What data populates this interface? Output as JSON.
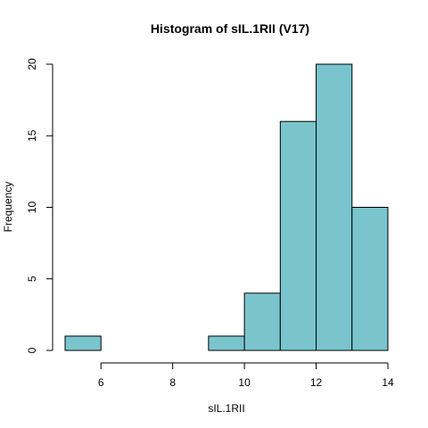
{
  "chart_data": {
    "type": "bar",
    "title": "Histogram of sIL.1RII (V17)",
    "xlabel": "sIL.1RII",
    "ylabel": "Frequency",
    "bins": [
      {
        "x0": 5,
        "x1": 6,
        "count": 1
      },
      {
        "x0": 6,
        "x1": 7,
        "count": 0
      },
      {
        "x0": 7,
        "x1": 8,
        "count": 0
      },
      {
        "x0": 8,
        "x1": 9,
        "count": 0
      },
      {
        "x0": 9,
        "x1": 10,
        "count": 1
      },
      {
        "x0": 10,
        "x1": 11,
        "count": 4
      },
      {
        "x0": 11,
        "x1": 12,
        "count": 16
      },
      {
        "x0": 12,
        "x1": 13,
        "count": 20
      },
      {
        "x0": 13,
        "x1": 14,
        "count": 10
      }
    ],
    "xlim": [
      5,
      14
    ],
    "ylim": [
      0,
      20
    ],
    "x_ticks": [
      6,
      8,
      10,
      12,
      14
    ],
    "y_ticks": [
      0,
      5,
      10,
      15,
      20
    ],
    "bar_color": "#7ac5cd",
    "bar_border_color": "#000000",
    "grid": false
  }
}
